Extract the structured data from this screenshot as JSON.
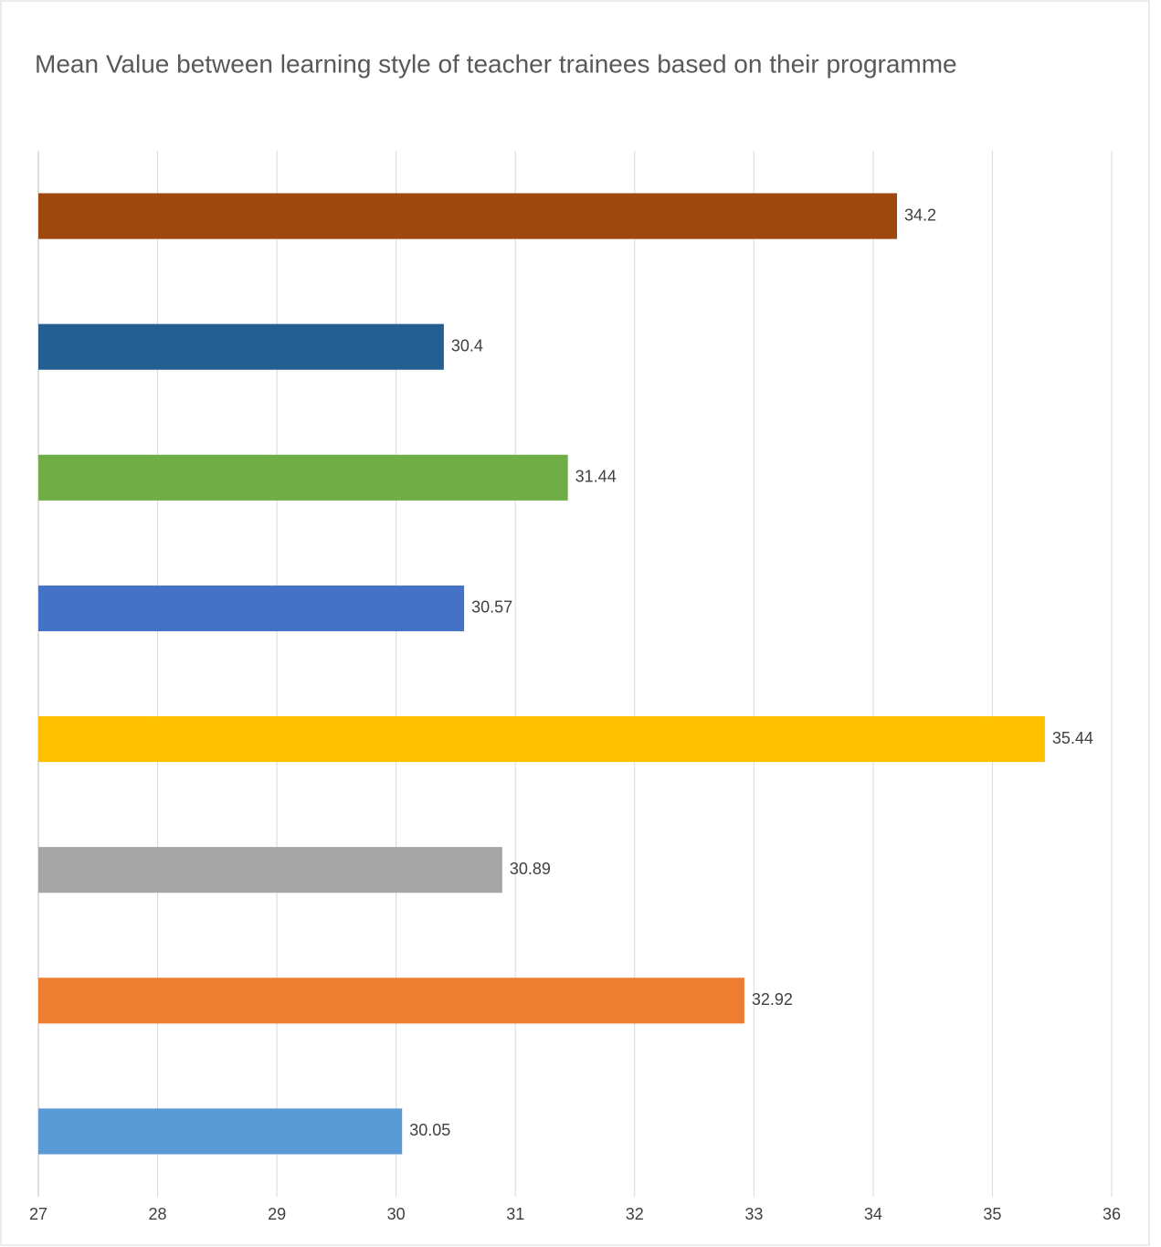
{
  "chart_data": {
    "type": "hbar",
    "title": "Mean Value between learning style of teacher trainees based on their programme",
    "categories": [
      null,
      null,
      null,
      null,
      null,
      null,
      null,
      null
    ],
    "values": [
      34.2,
      30.4,
      31.44,
      30.57,
      35.44,
      30.89,
      32.92,
      30.05
    ],
    "colors": [
      "#9e480e",
      "#255e91",
      "#70ad47",
      "#4472c4",
      "#ffc000",
      "#a5a5a5",
      "#ed7d31",
      "#5b9bd5"
    ],
    "xlim": [
      27,
      36
    ],
    "xticks": [
      27,
      28,
      29,
      30,
      31,
      32,
      33,
      34,
      35,
      36
    ],
    "grid": true
  }
}
